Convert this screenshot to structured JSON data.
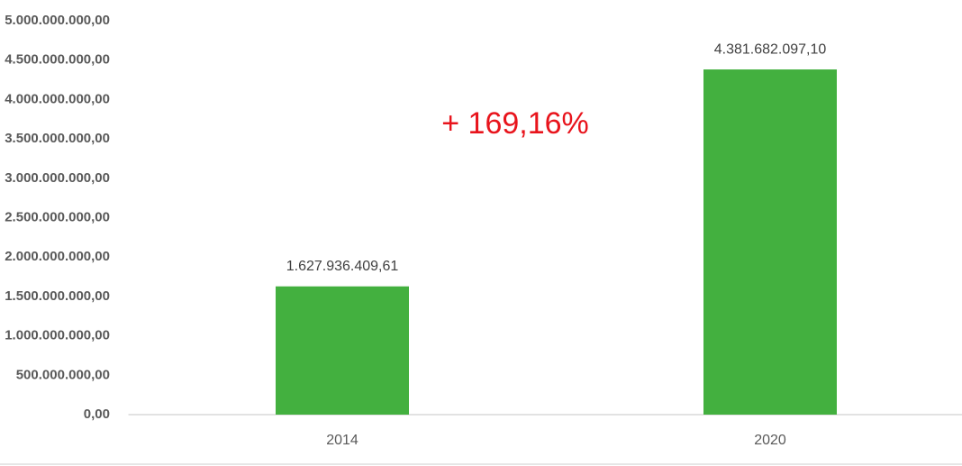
{
  "chart_data": {
    "type": "bar",
    "categories": [
      "2014",
      "2020"
    ],
    "values": [
      1627936409.61,
      4381682097.1
    ],
    "value_labels": [
      "1.627.936.409,61",
      "4.381.682.097,10"
    ],
    "color": "#43b03f",
    "ylim": [
      0,
      5000000000
    ],
    "yticks": [
      {
        "value": 0,
        "label": "0,00"
      },
      {
        "value": 500000000,
        "label": "500.000.000,00"
      },
      {
        "value": 1000000000,
        "label": "1.000.000.000,00"
      },
      {
        "value": 1500000000,
        "label": "1.500.000.000,00"
      },
      {
        "value": 2000000000,
        "label": "2.000.000.000,00"
      },
      {
        "value": 2500000000,
        "label": "2.500.000.000,00"
      },
      {
        "value": 3000000000,
        "label": "3.000.000.000,00"
      },
      {
        "value": 3500000000,
        "label": "3.500.000.000,00"
      },
      {
        "value": 4000000000,
        "label": "4.000.000.000,00"
      },
      {
        "value": 4500000000,
        "label": "4.500.000.000,00"
      },
      {
        "value": 5000000000,
        "label": "5.000.000.000,00"
      }
    ],
    "grid": false,
    "annotations": [
      "+ 169,16%"
    ]
  }
}
